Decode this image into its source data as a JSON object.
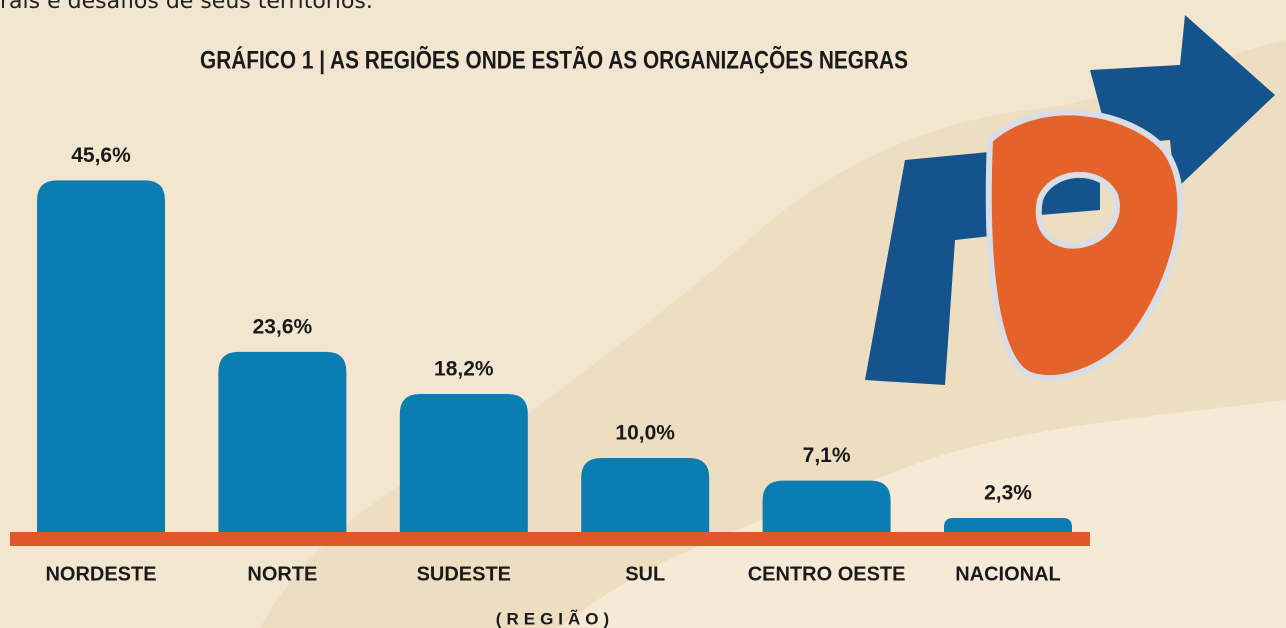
{
  "intro_text": "rais e desafios de seus territórios.",
  "chart_data": {
    "type": "bar",
    "title": "GRÁFICO 1 | AS REGIÕES ONDE ESTÃO AS ORGANIZAÇÕES NEGRAS",
    "x_label": "(REGIÃO)",
    "categories": [
      "NORDESTE",
      "NORTE",
      "SUDESTE",
      "SUL",
      "CENTRO OESTE",
      "NACIONAL"
    ],
    "values": [
      45.6,
      23.6,
      18.2,
      10.0,
      7.1,
      2.3
    ],
    "value_labels": [
      "45,6%",
      "23,6%",
      "18,2%",
      "10,0%",
      "7,1%",
      "2,3%"
    ],
    "color": "#0b7db3"
  }
}
